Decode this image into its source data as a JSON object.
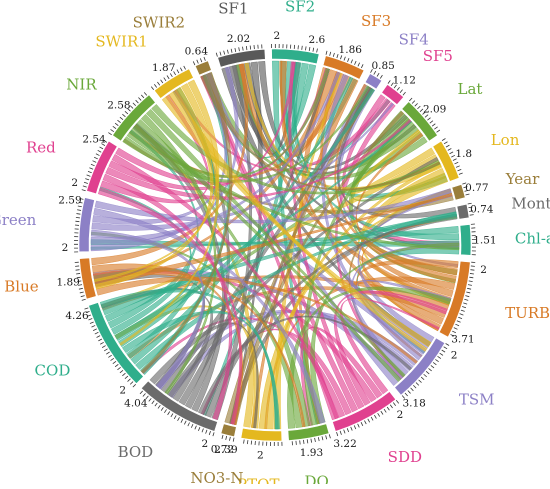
{
  "chart_data": {
    "type": "chord",
    "title": "",
    "segments": [
      {
        "name": "SF1",
        "color": "#595959",
        "values": [
          "2.02"
        ]
      },
      {
        "name": "SF2",
        "color": "#2fae8b",
        "values": [
          "2",
          "2.6"
        ]
      },
      {
        "name": "SF3",
        "color": "#d87a26",
        "values": [
          "1.86"
        ]
      },
      {
        "name": "SF4",
        "color": "#8c80c6",
        "values": [
          "0.85"
        ]
      },
      {
        "name": "SF5",
        "color": "#e0408f",
        "values": [
          "1.12"
        ]
      },
      {
        "name": "Lat",
        "color": "#6aa83a",
        "values": [
          "2.09"
        ]
      },
      {
        "name": "Lon",
        "color": "#e4b81f",
        "values": [
          "1.8"
        ]
      },
      {
        "name": "Year",
        "color": "#9a7e3a",
        "values": [
          "0.77"
        ]
      },
      {
        "name": "Month",
        "color": "#6b6b6b",
        "values": [
          "0.74"
        ]
      },
      {
        "name": "Chl-a",
        "color": "#2fae8b",
        "values": [
          "1.51"
        ]
      },
      {
        "name": "TURB",
        "color": "#d87a26",
        "values": [
          "2",
          "3.71"
        ]
      },
      {
        "name": "TSM",
        "color": "#8c80c6",
        "values": [
          "2",
          "3.18"
        ]
      },
      {
        "name": "SDD",
        "color": "#e0408f",
        "values": [
          "2",
          "3.22"
        ]
      },
      {
        "name": "DO",
        "color": "#6aa83a",
        "values": [
          "1.93"
        ]
      },
      {
        "name": "PTOT",
        "color": "#e4b81f",
        "values": [
          "2"
        ]
      },
      {
        "name": "NO3-N",
        "color": "#9a7e3a",
        "values": [
          "2.39",
          "0.72"
        ]
      },
      {
        "name": "BOD",
        "color": "#6b6b6b",
        "values": [
          "2",
          "4.04"
        ]
      },
      {
        "name": "COD",
        "color": "#2fae8b",
        "values": [
          "2",
          "4.26"
        ]
      },
      {
        "name": "Blue",
        "color": "#d87a26",
        "values": [
          "1.89"
        ]
      },
      {
        "name": "Green",
        "color": "#8c80c6",
        "values": [
          "2",
          "2.59"
        ]
      },
      {
        "name": "Red",
        "color": "#e0408f",
        "values": [
          "2",
          "2.54"
        ]
      },
      {
        "name": "NIR",
        "color": "#6aa83a",
        "values": [
          "2.58"
        ]
      },
      {
        "name": "SWIR1",
        "color": "#e4b81f",
        "values": [
          "1.87"
        ]
      },
      {
        "name": "SWIR2",
        "color": "#9a7e3a",
        "values": [
          "0.64"
        ]
      }
    ],
    "grid": false,
    "legend": "none"
  }
}
